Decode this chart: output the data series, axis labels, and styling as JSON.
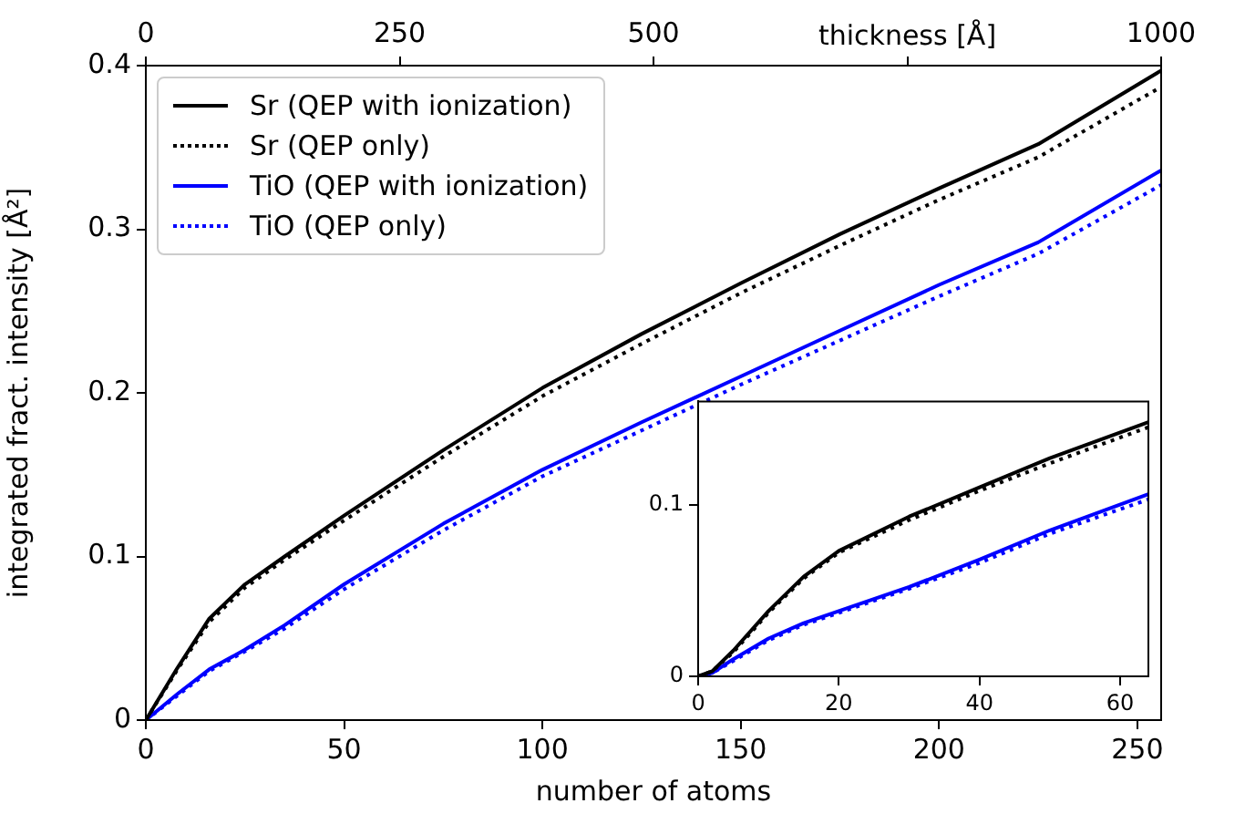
{
  "chart_data": [
    {
      "type": "line",
      "xlabel": "number of atoms",
      "ylabel": "integrated fract. intensity [Å²]",
      "x2label": "thickness [Å]",
      "legend": "top left",
      "grid": false,
      "x": [
        0,
        8,
        16,
        25,
        35,
        50,
        75,
        100,
        125,
        150,
        175,
        200,
        225,
        256
      ],
      "xlim": [
        0,
        256
      ],
      "xticks": [
        0,
        50,
        100,
        150,
        200,
        250
      ],
      "ylim": [
        0,
        0.4
      ],
      "yticks": [
        0,
        0.1,
        0.2,
        0.3,
        0.4
      ],
      "x2lim": [
        0,
        1000
      ],
      "x2ticks": [
        0,
        250,
        500,
        {
          "value": 750,
          "label": null
        },
        1000
      ],
      "series": [
        {
          "name": "Sr (QEP with ionization)",
          "color": "#000000",
          "line_style": "solid",
          "values": [
            0,
            0.032,
            0.062,
            0.083,
            0.1,
            0.125,
            0.165,
            0.203,
            0.236,
            0.267,
            0.297,
            0.325,
            0.352,
            0.397
          ]
        },
        {
          "name": "Sr (QEP only)",
          "color": "#000000",
          "line_style": "dotted",
          "values": [
            0,
            0.031,
            0.06,
            0.081,
            0.098,
            0.122,
            0.161,
            0.198,
            0.23,
            0.261,
            0.29,
            0.318,
            0.344,
            0.387
          ]
        },
        {
          "name": "TiO (QEP with ionization)",
          "color": "#0000ff",
          "line_style": "solid",
          "values": [
            0,
            0.016,
            0.031,
            0.043,
            0.058,
            0.083,
            0.12,
            0.153,
            0.182,
            0.21,
            0.238,
            0.266,
            0.292,
            0.336
          ]
        },
        {
          "name": "TiO (QEP only)",
          "color": "#0000ff",
          "line_style": "dotted",
          "values": [
            0,
            0.015,
            0.03,
            0.042,
            0.056,
            0.08,
            0.116,
            0.149,
            0.177,
            0.205,
            0.232,
            0.259,
            0.285,
            0.327
          ]
        }
      ]
    },
    {
      "type": "line",
      "grid": false,
      "x": [
        0,
        2,
        5,
        10,
        15,
        20,
        30,
        40,
        50,
        64
      ],
      "xlim": [
        0,
        64
      ],
      "xticks": [
        0,
        20,
        40,
        60
      ],
      "ylim": [
        0,
        0.16
      ],
      "yticks": [
        0,
        0.1
      ],
      "series": [
        {
          "color": "#000000",
          "line_style": "solid",
          "values": [
            0,
            0.003,
            0.015,
            0.038,
            0.058,
            0.073,
            0.093,
            0.11,
            0.127,
            0.148
          ]
        },
        {
          "color": "#000000",
          "line_style": "dotted",
          "values": [
            0,
            0.003,
            0.014,
            0.037,
            0.057,
            0.072,
            0.091,
            0.108,
            0.124,
            0.145
          ]
        },
        {
          "color": "#0000ff",
          "line_style": "solid",
          "values": [
            0,
            0.002,
            0.01,
            0.022,
            0.031,
            0.038,
            0.052,
            0.068,
            0.085,
            0.106
          ]
        },
        {
          "color": "#0000ff",
          "line_style": "dotted",
          "values": [
            0,
            0.002,
            0.009,
            0.021,
            0.03,
            0.037,
            0.051,
            0.066,
            0.083,
            0.103
          ]
        }
      ]
    }
  ]
}
